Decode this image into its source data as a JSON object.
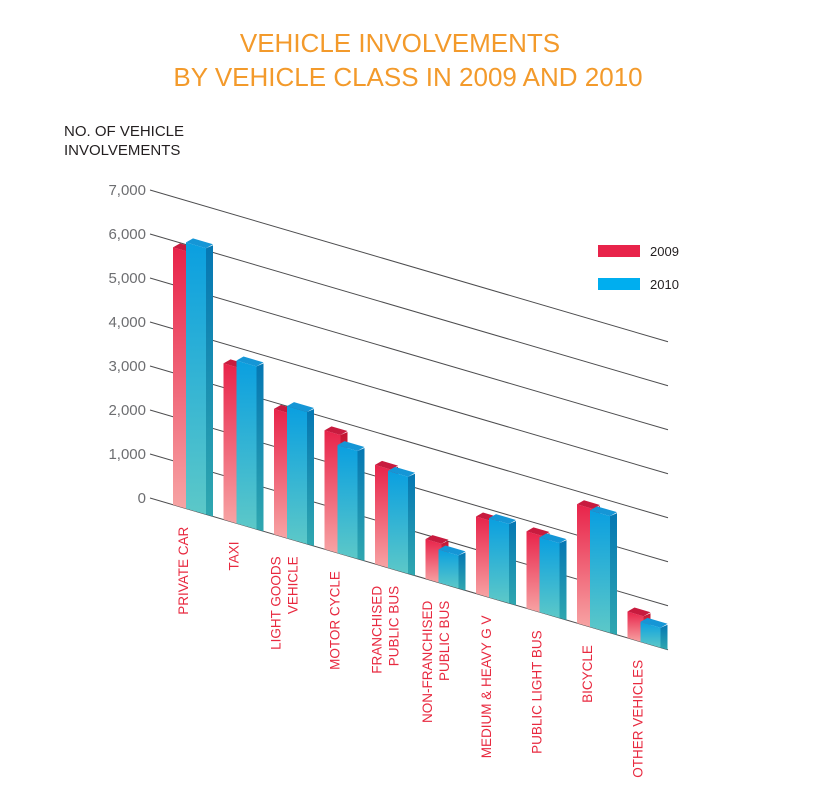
{
  "chart_data": {
    "type": "bar",
    "title_lines": [
      "VEHICLE INVOLVEMENTS",
      "BY VEHICLE CLASS IN 2009 AND 2010"
    ],
    "ylabel_lines": [
      "NO. OF VEHICLE",
      "INVOLVEMENTS"
    ],
    "ylim": [
      0,
      7000
    ],
    "y_ticks": [
      "0",
      "1,000",
      "2,000",
      "3,000",
      "4,000",
      "5,000",
      "6,000",
      "7,000"
    ],
    "categories": [
      [
        "PRIVATE CAR"
      ],
      [
        "TAXI"
      ],
      [
        "LIGHT GOODS",
        "VEHICLE"
      ],
      [
        "MOTOR CYCLE"
      ],
      [
        "FRANCHISED",
        "PUBLIC BUS"
      ],
      [
        "NON-FRANCHISED",
        "PUBLIC BUS"
      ],
      [
        "MEDIUM & HEAVY G V"
      ],
      [
        "PUBLIC LIGHT BUS"
      ],
      [
        "BICYCLE"
      ],
      [
        "OTHER VEHICLES"
      ]
    ],
    "series": [
      {
        "name": "2009",
        "color": "#e8234a",
        "values": [
          5850,
          3550,
          2850,
          2700,
          2250,
          900,
          1750,
          1750,
          2700,
          600
        ]
      },
      {
        "name": "2010",
        "color": "#00aeef",
        "values": [
          6050,
          3700,
          3000,
          2450,
          2200,
          750,
          1800,
          1700,
          2650,
          450
        ]
      }
    ],
    "legend_position": "right",
    "grid": true
  }
}
